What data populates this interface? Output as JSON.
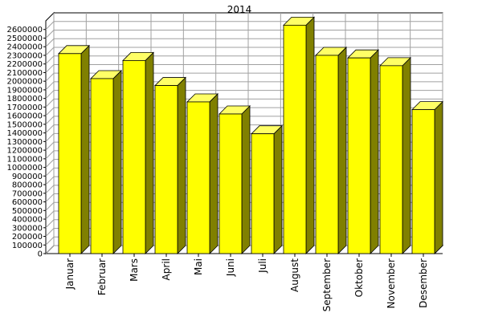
{
  "chart_data": {
    "type": "bar",
    "title": "2014",
    "xlabel": "",
    "ylabel": "",
    "categories": [
      "Januar",
      "Februar",
      "Mars",
      "April",
      "Mai",
      "Juni",
      "Juli",
      "August",
      "September",
      "Oktober",
      "November",
      "Desember"
    ],
    "values": [
      2320000,
      2030000,
      2240000,
      1950000,
      1760000,
      1620000,
      1390000,
      2650000,
      2300000,
      2270000,
      2180000,
      1670000
    ],
    "ylim": [
      0,
      2700000
    ],
    "yticks": [
      0,
      100000,
      200000,
      300000,
      400000,
      500000,
      600000,
      700000,
      800000,
      900000,
      1000000,
      1100000,
      1200000,
      1300000,
      1400000,
      1500000,
      1600000,
      1700000,
      1800000,
      1900000,
      2000000,
      2100000,
      2200000,
      2300000,
      2400000,
      2500000,
      2600000
    ],
    "grid": true,
    "style": "3d",
    "colors": {
      "bar_front": "#ffff00",
      "bar_top": "#ffff66",
      "bar_side": "#808000",
      "grid": "#a0a0a0",
      "wall": "#ffffff"
    }
  }
}
